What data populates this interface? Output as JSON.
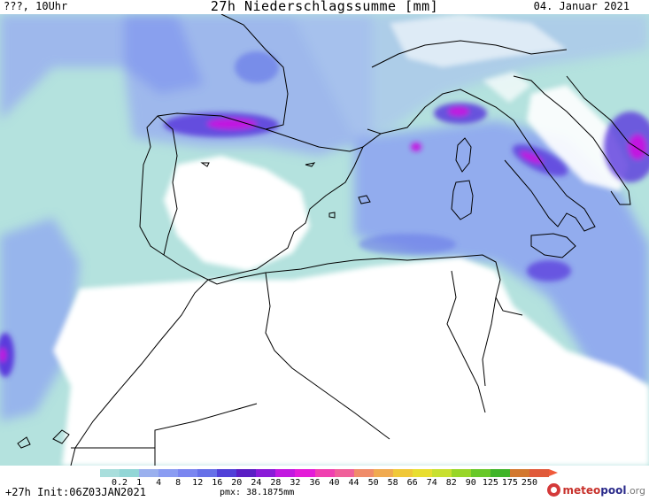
{
  "header": {
    "left_label": "???, 10Uhr",
    "title": "27h Niederschlagssumme [mm]",
    "date": "04. Januar 2021"
  },
  "legend": {
    "ticks": [
      "0.2",
      "1",
      "4",
      "8",
      "12",
      "16",
      "20",
      "24",
      "28",
      "32",
      "36",
      "40",
      "44",
      "50",
      "58",
      "66",
      "74",
      "82",
      "90",
      "125",
      "175",
      "250"
    ],
    "colors": [
      "#a9dedc",
      "#92d6d6",
      "#9ab0ee",
      "#8a9cf2",
      "#7a86f0",
      "#6670e8",
      "#5040d8",
      "#5a1ec4",
      "#8a1ad8",
      "#c218e0",
      "#e41cd8",
      "#f040b0",
      "#f0609a",
      "#f08c6a",
      "#f0aa50",
      "#f0c838",
      "#e8de30",
      "#c8e030",
      "#98d628",
      "#68c828",
      "#40b428",
      "#d2782e",
      "#e05a3a"
    ],
    "arrow_color": "#f05a3a"
  },
  "footer": {
    "run": "+27h Init:06Z03JAN2021",
    "pmx": "pmx: 38.1875mm"
  },
  "logo": {
    "part1": "meteo",
    "part2": "pool",
    "part3": ".org",
    "icon": "meteopool-logo-icon"
  }
}
